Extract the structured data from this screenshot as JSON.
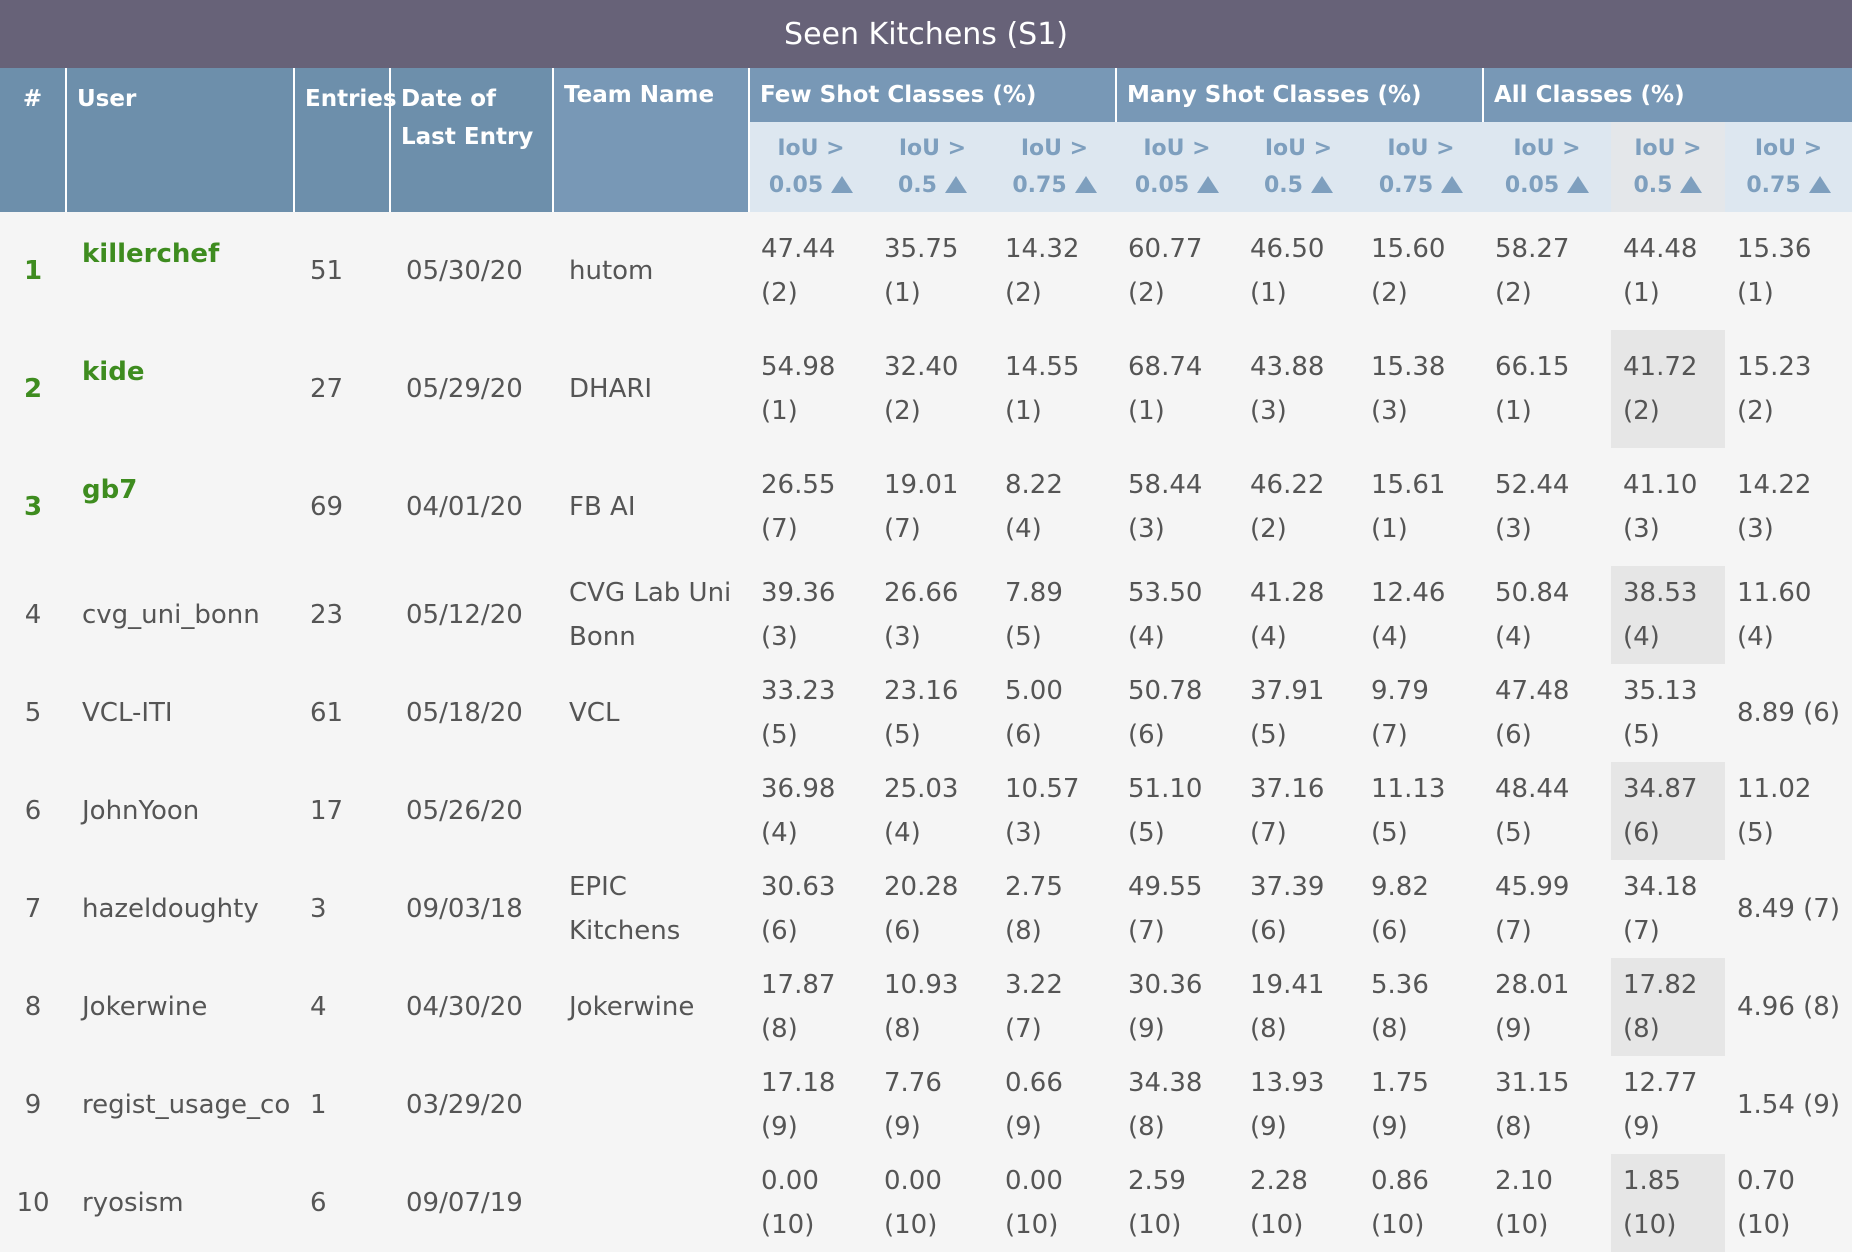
{
  "title": "Seen Kitchens (S1)",
  "headers": {
    "rank": "#",
    "user": "User",
    "entries": "Entries",
    "date": "Date of Last Entry",
    "team": "Team Name",
    "few": "Few Shot Classes (%)",
    "many": "Many Shot Classes (%)",
    "all": "All Classes (%)"
  },
  "subheaders": [
    "IoU > 0.05",
    "IoU > 0.5",
    "IoU > 0.75",
    "IoU > 0.05",
    "IoU > 0.5",
    "IoU > 0.75",
    "IoU > 0.05",
    "IoU > 0.5",
    "IoU > 0.75"
  ],
  "sort_icon": "triangle-up-icon",
  "colors": {
    "title_bg": "#676278",
    "header_bg": "#6d8fab",
    "winner": "#3e8c1f"
  },
  "rows": [
    {
      "rank": "1",
      "user": "killerchef",
      "entries": "51",
      "date": "05/30/20",
      "team": "hutom",
      "m": [
        "47.44 (2)",
        "35.75 (1)",
        "14.32 (2)",
        "60.77 (2)",
        "46.50 (1)",
        "15.60 (2)",
        "58.27 (2)",
        "44.48 (1)",
        "15.36 (1)"
      ]
    },
    {
      "rank": "2",
      "user": "kide",
      "entries": "27",
      "date": "05/29/20",
      "team": "DHARI",
      "m": [
        "54.98 (1)",
        "32.40 (2)",
        "14.55 (1)",
        "68.74 (1)",
        "43.88 (3)",
        "15.38 (3)",
        "66.15 (1)",
        "41.72 (2)",
        "15.23 (2)"
      ]
    },
    {
      "rank": "3",
      "user": "gb7",
      "entries": "69",
      "date": "04/01/20",
      "team": "FB AI",
      "m": [
        "26.55 (7)",
        "19.01 (7)",
        "8.22 (4)",
        "58.44 (3)",
        "46.22 (2)",
        "15.61 (1)",
        "52.44 (3)",
        "41.10 (3)",
        "14.22 (3)"
      ]
    },
    {
      "rank": "4",
      "user": "cvg_uni_bonn",
      "entries": "23",
      "date": "05/12/20",
      "team": "CVG Lab Uni Bonn",
      "m": [
        "39.36 (3)",
        "26.66 (3)",
        "7.89 (5)",
        "53.50 (4)",
        "41.28 (4)",
        "12.46 (4)",
        "50.84 (4)",
        "38.53 (4)",
        "11.60 (4)"
      ]
    },
    {
      "rank": "5",
      "user": "VCL-ITI",
      "entries": "61",
      "date": "05/18/20",
      "team": "VCL",
      "m": [
        "33.23 (5)",
        "23.16 (5)",
        "5.00 (6)",
        "50.78 (6)",
        "37.91 (5)",
        "9.79 (7)",
        "47.48 (6)",
        "35.13 (5)",
        "8.89 (6)"
      ]
    },
    {
      "rank": "6",
      "user": "JohnYoon",
      "entries": "17",
      "date": "05/26/20",
      "team": "",
      "m": [
        "36.98 (4)",
        "25.03 (4)",
        "10.57 (3)",
        "51.10 (5)",
        "37.16 (7)",
        "11.13 (5)",
        "48.44 (5)",
        "34.87 (6)",
        "11.02 (5)"
      ]
    },
    {
      "rank": "7",
      "user": "hazeldoughty",
      "entries": "3",
      "date": "09/03/18",
      "team": "EPIC Kitchens",
      "m": [
        "30.63 (6)",
        "20.28 (6)",
        "2.75 (8)",
        "49.55 (7)",
        "37.39 (6)",
        "9.82 (6)",
        "45.99 (7)",
        "34.18 (7)",
        "8.49 (7)"
      ]
    },
    {
      "rank": "8",
      "user": "Jokerwine",
      "entries": "4",
      "date": "04/30/20",
      "team": "Jokerwine",
      "m": [
        "17.87 (8)",
        "10.93 (8)",
        "3.22 (7)",
        "30.36 (9)",
        "19.41 (8)",
        "5.36 (8)",
        "28.01 (9)",
        "17.82 (8)",
        "4.96 (8)"
      ]
    },
    {
      "rank": "9",
      "user": "regist_usage_co",
      "entries": "1",
      "date": "03/29/20",
      "team": "",
      "m": [
        "17.18 (9)",
        "7.76 (9)",
        "0.66 (9)",
        "34.38 (8)",
        "13.93 (9)",
        "1.75 (9)",
        "31.15 (8)",
        "12.77 (9)",
        "1.54 (9)"
      ]
    },
    {
      "rank": "10",
      "user": "ryosism",
      "entries": "6",
      "date": "09/07/19",
      "team": "",
      "m": [
        "0.00 (10)",
        "0.00 (10)",
        "0.00 (10)",
        "2.59 (10)",
        "2.28 (10)",
        "0.86 (10)",
        "2.10 (10)",
        "1.85 (10)",
        "0.70 (10)"
      ]
    }
  ]
}
